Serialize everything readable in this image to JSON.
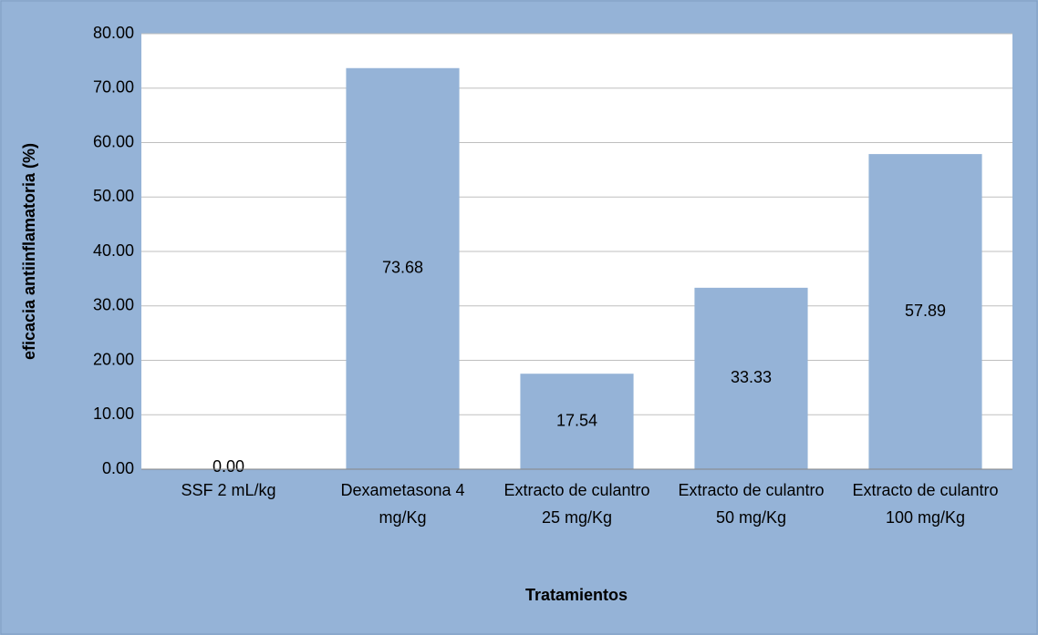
{
  "chart_data": {
    "type": "bar",
    "x_label": "Tratamientos",
    "y_label": "eficacia antiinflamatoria (%)",
    "categories": [
      "SSF 2 mL/kg",
      "Dexametasona 4 mg/Kg",
      "Extracto de culantro 25 mg/Kg",
      "Extracto de culantro 50 mg/Kg",
      "Extracto de culantro 100 mg/Kg"
    ],
    "values": [
      0,
      73.68,
      17.54,
      33.33,
      57.89
    ],
    "value_labels": [
      "0.00",
      "73.68",
      "17.54",
      "33.33",
      "57.89"
    ],
    "color": "#95b3d7",
    "ylim": [
      0,
      80
    ],
    "yticks": [
      {
        "value": 0,
        "label": "0.00"
      },
      {
        "value": 10,
        "label": "10.00"
      },
      {
        "value": 20,
        "label": "20.00"
      },
      {
        "value": 30,
        "label": "30.00"
      },
      {
        "value": 40,
        "label": "40.00"
      },
      {
        "value": 50,
        "label": "50.00"
      },
      {
        "value": 60,
        "label": "60.00"
      },
      {
        "value": 70,
        "label": "70.00"
      },
      {
        "value": 80,
        "label": "80.00"
      }
    ],
    "grid": true
  }
}
